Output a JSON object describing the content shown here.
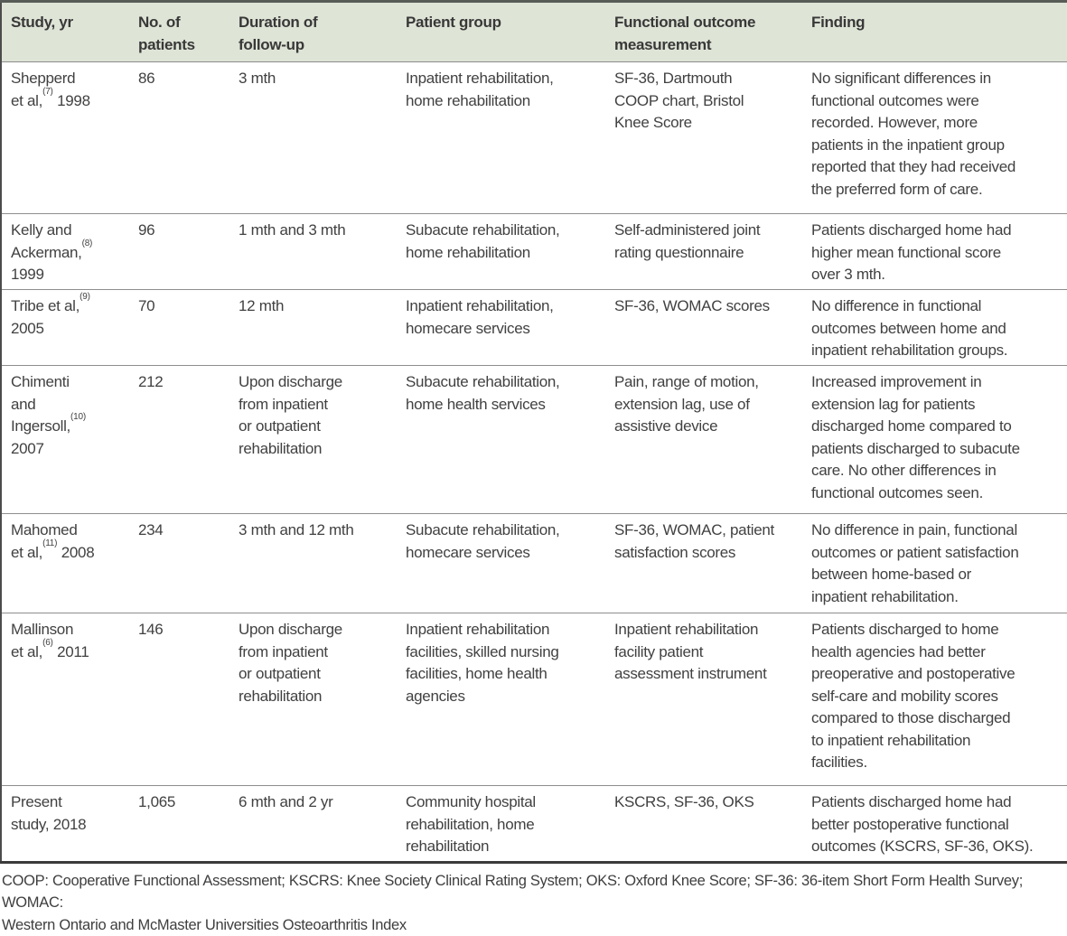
{
  "colors": {
    "header_background": "#dee4d6",
    "border_top": "#575c57",
    "border_dark": "#3b3b3b",
    "row_divider": "#8e8e8e",
    "text": "#414141"
  },
  "table": {
    "columns": [
      "Study, yr",
      "No. of\npatients",
      "Duration of\nfollow-up",
      "Patient group",
      "Functional outcome\nmeasurement",
      "Finding"
    ],
    "rows": [
      {
        "study": [
          {
            "text": "Shepperd\net al,",
            "sup": false
          },
          {
            "text": "(7)",
            "sup": true
          },
          {
            "text": " 1998",
            "sup": false
          }
        ],
        "patients": "86",
        "duration": "3 mth",
        "patient_group": "Inpatient rehabilitation,\nhome rehabilitation",
        "measurement": "SF-36, Dartmouth\nCOOP chart, Bristol\nKnee Score",
        "finding": "No significant differences in\nfunctional outcomes were\nrecorded. However, more\npatients in the inpatient group\nreported that they had received\nthe preferred form of care."
      },
      {
        "study": [
          {
            "text": "Kelly and\nAckerman,",
            "sup": false
          },
          {
            "text": "(8)",
            "sup": true
          },
          {
            "text": "\n1999",
            "sup": false
          }
        ],
        "patients": "96",
        "duration": "1 mth and 3 mth",
        "patient_group": "Subacute rehabilitation,\nhome rehabilitation",
        "measurement": "Self-administered joint\nrating questionnaire",
        "finding": "Patients discharged home had\nhigher mean functional score\nover 3 mth."
      },
      {
        "study": [
          {
            "text": "Tribe et al,",
            "sup": false
          },
          {
            "text": "(9)",
            "sup": true
          },
          {
            "text": "\n2005",
            "sup": false
          }
        ],
        "patients": "70",
        "duration": "12 mth",
        "patient_group": "Inpatient rehabilitation,\nhomecare services",
        "measurement": "SF-36, WOMAC scores",
        "finding": "No difference in functional\noutcomes between home and\ninpatient rehabilitation groups."
      },
      {
        "study": [
          {
            "text": "Chimenti\nand\nIngersoll,",
            "sup": false
          },
          {
            "text": "(10)",
            "sup": true
          },
          {
            "text": "\n2007",
            "sup": false
          }
        ],
        "patients": "212",
        "duration": "Upon discharge\nfrom inpatient\nor outpatient\nrehabilitation",
        "patient_group": "Subacute rehabilitation,\nhome health services",
        "measurement": "Pain, range of motion,\nextension lag, use of\nassistive device",
        "finding": "Increased improvement in\nextension lag for patients\ndischarged home compared to\npatients discharged to subacute\ncare. No other differences in\nfunctional outcomes seen."
      },
      {
        "study": [
          {
            "text": "Mahomed\net al,",
            "sup": false
          },
          {
            "text": "(11)",
            "sup": true
          },
          {
            "text": " 2008",
            "sup": false
          }
        ],
        "patients": "234",
        "duration": "3 mth and 12 mth",
        "patient_group": "Subacute rehabilitation,\nhomecare services",
        "measurement": "SF-36, WOMAC, patient\nsatisfaction scores",
        "finding": "No difference in pain, functional\noutcomes or patient satisfaction\nbetween home-based or\ninpatient rehabilitation."
      },
      {
        "study": [
          {
            "text": "Mallinson\net al,",
            "sup": false
          },
          {
            "text": "(6)",
            "sup": true
          },
          {
            "text": " 2011",
            "sup": false
          }
        ],
        "patients": "146",
        "duration": "Upon discharge\nfrom inpatient\nor outpatient\nrehabilitation",
        "patient_group": "Inpatient rehabilitation\nfacilities, skilled nursing\nfacilities, home health\nagencies",
        "measurement": "Inpatient rehabilitation\nfacility patient\nassessment instrument",
        "finding": "Patients discharged to home\nhealth agencies had better\npreoperative and postoperative\nself-care and mobility scores\ncompared to those discharged\nto inpatient rehabilitation\nfacilities."
      },
      {
        "study": [
          {
            "text": "Present\nstudy, 2018",
            "sup": false
          }
        ],
        "patients": "1,065",
        "duration": "6 mth and 2 yr",
        "patient_group": "Community hospital\nrehabilitation, home\nrehabilitation",
        "measurement": "KSCRS, SF-36, OKS",
        "finding": "Patients discharged home had\nbetter postoperative functional\noutcomes (KSCRS, SF-36, OKS)."
      }
    ],
    "footnote": "COOP: Cooperative Functional Assessment; KSCRS: Knee Society Clinical Rating System; OKS: Oxford Knee Score; SF-36: 36-item Short Form Health Survey; WOMAC:\nWestern Ontario and McMaster Universities Osteoarthritis Index"
  }
}
